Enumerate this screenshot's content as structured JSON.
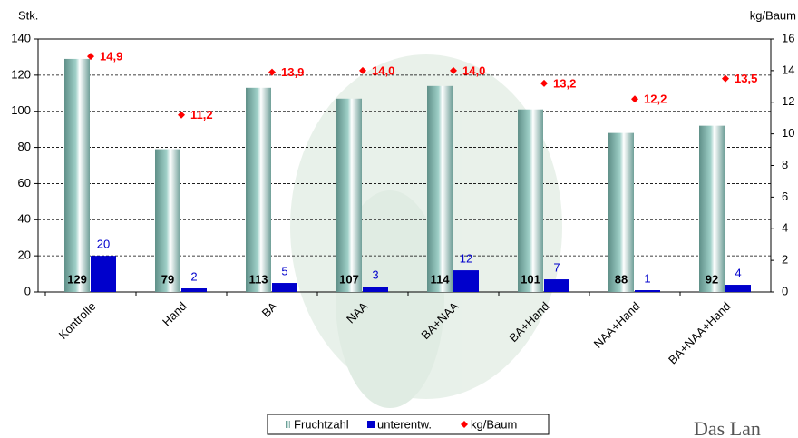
{
  "chart_data": {
    "type": "bar",
    "y_label": "Stk.",
    "y2_label": "kg/Baum",
    "categories": [
      "Kontrolle",
      "Hand",
      "BA",
      "NAA",
      "BA+NAA",
      "BA+Hand",
      "NAA+Hand",
      "BA+NAA+Hand"
    ],
    "series": [
      {
        "name": "Fruchtzahl",
        "color": "#9fd0c8",
        "values": [
          129,
          79,
          113,
          107,
          114,
          101,
          88,
          92
        ]
      },
      {
        "name": "unterentw.",
        "color": "#0000cc",
        "values": [
          20,
          2,
          5,
          3,
          12,
          7,
          1,
          4
        ]
      },
      {
        "name": "kg/Baum",
        "type": "scatter",
        "axis": "y2",
        "color": "#ff0000",
        "values": [
          14.9,
          11.2,
          13.9,
          14.0,
          14.0,
          13.2,
          12.2,
          13.5
        ],
        "value_labels": [
          "14,9",
          "11,2",
          "13,9",
          "14,0",
          "14,0",
          "13,2",
          "12,2",
          "13,5"
        ]
      }
    ],
    "ylim": [
      0,
      140
    ],
    "yticks": [
      0,
      20,
      40,
      60,
      80,
      100,
      120,
      140
    ],
    "y2lim": [
      0,
      16
    ],
    "y2ticks": [
      0,
      2,
      4,
      6,
      8,
      10,
      12,
      14,
      16
    ],
    "grid": true,
    "legend": "bottom"
  },
  "logo_text": "Das Lan"
}
